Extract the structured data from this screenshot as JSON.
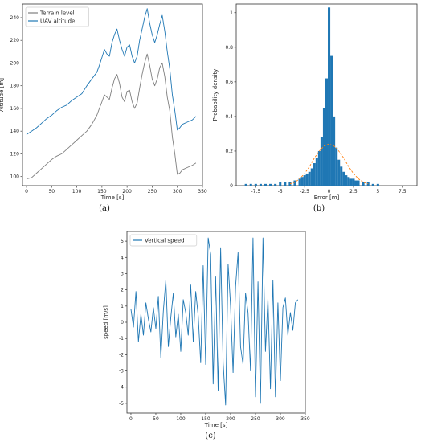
{
  "chart_data": [
    {
      "type": "line",
      "caption": "(a)",
      "xlabel": "Time [s]",
      "ylabel": "Altitude [m]",
      "xlim": [
        -8,
        350
      ],
      "ylim": [
        92,
        252
      ],
      "xticks": [
        0,
        50,
        100,
        150,
        200,
        250,
        300,
        350
      ],
      "yticks": [
        100,
        120,
        140,
        160,
        180,
        200,
        220,
        240
      ],
      "legend": "top-left",
      "series": [
        {
          "name": "Terrain level",
          "color": "#7f7f7f",
          "x": [
            0,
            10,
            20,
            30,
            40,
            50,
            60,
            70,
            80,
            90,
            100,
            110,
            120,
            130,
            140,
            145,
            150,
            155,
            160,
            165,
            170,
            175,
            180,
            185,
            190,
            195,
            200,
            205,
            210,
            215,
            220,
            225,
            230,
            235,
            240,
            245,
            250,
            255,
            260,
            265,
            270,
            275,
            280,
            285,
            290,
            295,
            300,
            305,
            310,
            320,
            330,
            337
          ],
          "y": [
            98,
            99,
            103,
            107,
            111,
            115,
            118,
            120,
            124,
            128,
            132,
            136,
            140,
            146,
            154,
            160,
            166,
            172,
            170,
            168,
            178,
            186,
            190,
            182,
            170,
            166,
            175,
            176,
            166,
            160,
            165,
            178,
            190,
            200,
            208,
            198,
            186,
            180,
            186,
            196,
            200,
            188,
            170,
            158,
            135,
            120,
            102,
            103,
            106,
            108,
            110,
            112
          ]
        },
        {
          "name": "UAV altitude",
          "color": "#1f77b4",
          "x": [
            0,
            10,
            20,
            30,
            40,
            50,
            60,
            70,
            80,
            90,
            100,
            110,
            120,
            130,
            140,
            145,
            150,
            155,
            160,
            165,
            170,
            175,
            180,
            185,
            190,
            195,
            200,
            205,
            210,
            215,
            220,
            225,
            230,
            235,
            240,
            245,
            250,
            255,
            260,
            265,
            270,
            275,
            280,
            285,
            290,
            295,
            300,
            305,
            310,
            320,
            330,
            337
          ],
          "y": [
            137,
            140,
            143,
            147,
            151,
            154,
            158,
            161,
            163,
            167,
            170,
            173,
            180,
            186,
            192,
            198,
            205,
            212,
            208,
            206,
            218,
            225,
            230,
            220,
            212,
            206,
            214,
            216,
            206,
            200,
            206,
            220,
            230,
            240,
            248,
            235,
            225,
            218,
            225,
            234,
            242,
            228,
            210,
            195,
            172,
            158,
            141,
            143,
            146,
            148,
            150,
            153
          ]
        }
      ]
    },
    {
      "type": "bar",
      "caption": "(b)",
      "xlabel": "Error [m]",
      "ylabel": "Probability density",
      "xlim": [
        -9.5,
        9
      ],
      "ylim": [
        0,
        1.05
      ],
      "xticks": [
        -7.5,
        -5.0,
        -2.5,
        0.0,
        2.5,
        5.0,
        7.5
      ],
      "yticks": [
        0.0,
        0.2,
        0.4,
        0.6,
        0.8,
        1.0
      ],
      "bin_width": 0.25,
      "bin_centers": [
        -8.5,
        -8.0,
        -7.5,
        -7.0,
        -6.5,
        -6.0,
        -5.5,
        -5.0,
        -4.5,
        -4.0,
        -3.5,
        -3.0,
        -2.75,
        -2.5,
        -2.25,
        -2.0,
        -1.75,
        -1.5,
        -1.25,
        -1.0,
        -0.75,
        -0.5,
        -0.25,
        0.0,
        0.25,
        0.5,
        0.75,
        1.0,
        1.25,
        1.5,
        1.75,
        2.0,
        2.25,
        2.5,
        2.75,
        3.0,
        3.5,
        4.0,
        4.5,
        5.0
      ],
      "values": [
        0.01,
        0.01,
        0.01,
        0.01,
        0.01,
        0.01,
        0.01,
        0.02,
        0.02,
        0.02,
        0.03,
        0.04,
        0.05,
        0.06,
        0.07,
        0.08,
        0.1,
        0.13,
        0.16,
        0.2,
        0.28,
        0.45,
        0.62,
        1.03,
        0.75,
        0.4,
        0.22,
        0.15,
        0.11,
        0.08,
        0.06,
        0.05,
        0.04,
        0.04,
        0.03,
        0.03,
        0.02,
        0.02,
        0.01,
        0.01
      ],
      "bar_color": "#1f77b4",
      "fit_curve": {
        "style": "dashed",
        "color": "#ff7f0e",
        "x": [
          -4.0,
          -3.5,
          -3.0,
          -2.5,
          -2.0,
          -1.5,
          -1.0,
          -0.5,
          0.0,
          0.5,
          1.0,
          1.5,
          2.0,
          2.5,
          3.0,
          3.5,
          4.0
        ],
        "y": [
          0.01,
          0.02,
          0.04,
          0.07,
          0.11,
          0.16,
          0.2,
          0.23,
          0.24,
          0.23,
          0.2,
          0.16,
          0.11,
          0.07,
          0.04,
          0.02,
          0.01
        ]
      }
    },
    {
      "type": "line",
      "caption": "(c)",
      "xlabel": "Time [s]",
      "ylabel": "speed [m/s]",
      "xlim": [
        -8,
        350
      ],
      "ylim": [
        -5.6,
        5.6
      ],
      "xticks": [
        0,
        50,
        100,
        150,
        200,
        250,
        300,
        350
      ],
      "yticks": [
        -5,
        -4,
        -3,
        -2,
        -1,
        0,
        1,
        2,
        3,
        4,
        5
      ],
      "legend": "top-left",
      "series": [
        {
          "name": "Vertical speed",
          "color": "#1f77b4",
          "x": [
            0,
            5,
            10,
            15,
            20,
            25,
            30,
            35,
            40,
            45,
            50,
            55,
            60,
            65,
            70,
            75,
            80,
            85,
            90,
            95,
            100,
            105,
            110,
            115,
            120,
            125,
            130,
            135,
            140,
            145,
            150,
            155,
            160,
            165,
            170,
            175,
            180,
            185,
            190,
            195,
            200,
            205,
            210,
            215,
            220,
            225,
            230,
            235,
            240,
            245,
            250,
            255,
            260,
            265,
            270,
            275,
            280,
            285,
            290,
            295,
            300,
            305,
            310,
            315,
            320,
            325,
            330,
            335
          ],
          "y": [
            0.8,
            -0.3,
            1.9,
            -1.2,
            0.5,
            -0.8,
            1.2,
            0.2,
            -0.6,
            0.9,
            -0.4,
            1.6,
            -2.2,
            0.7,
            2.6,
            -1.5,
            0.3,
            1.8,
            -0.9,
            0.5,
            -1.8,
            1.4,
            0.6,
            -0.8,
            2.3,
            -1.2,
            1.9,
            0.4,
            -2.5,
            3.5,
            -2.6,
            5.2,
            4.2,
            -3.8,
            2.8,
            -4.2,
            4.6,
            -2.5,
            -5.1,
            3.6,
            1.0,
            -3.1,
            2.2,
            4.3,
            -1.5,
            -2.6,
            1.8,
            0.6,
            -3.0,
            5.2,
            -4.6,
            2.5,
            -5.0,
            5.2,
            -1.8,
            1.5,
            -4.1,
            2.6,
            -4.6,
            1.2,
            -3.6,
            0.9,
            1.5,
            -0.8,
            0.6,
            -0.5,
            1.2,
            1.4
          ]
        }
      ]
    }
  ]
}
